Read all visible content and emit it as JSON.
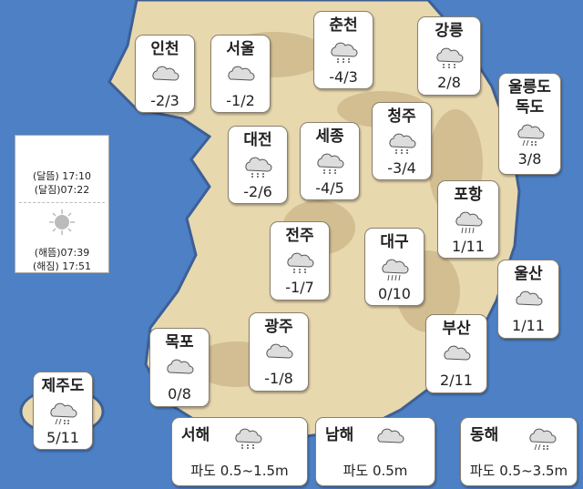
{
  "colors": {
    "sea": "#4d80c4",
    "land": "#e8d8ae",
    "land_dark": "#c9b486"
  },
  "astro": {
    "moon_icon": "moon-icon",
    "moonrise": "(달뜸) 17:10",
    "moonset": "(달짐)07:22",
    "sun_icon": "sun-icon",
    "sunrise": "(해뜸)07:39",
    "sunset": "(해짐) 17:51"
  },
  "cities": [
    {
      "name": "인천",
      "temp": "-2/3",
      "icon": "cloudy"
    },
    {
      "name": "서울",
      "temp": "-1/2",
      "icon": "cloudy"
    },
    {
      "name": "춘천",
      "temp": "-4/3",
      "icon": "snow"
    },
    {
      "name": "강릉",
      "temp": "2/8",
      "icon": "snow"
    },
    {
      "name": "울릉도",
      "name2": "독도",
      "temp": "3/8",
      "icon": "sleet"
    },
    {
      "name": "대전",
      "temp": "-2/6",
      "icon": "snow"
    },
    {
      "name": "세종",
      "temp": "-4/5",
      "icon": "snow"
    },
    {
      "name": "청주",
      "temp": "-3/4",
      "icon": "snow"
    },
    {
      "name": "포항",
      "temp": "1/11",
      "icon": "rain"
    },
    {
      "name": "전주",
      "temp": "-1/7",
      "icon": "snow"
    },
    {
      "name": "대구",
      "temp": "0/10",
      "icon": "rain"
    },
    {
      "name": "울산",
      "temp": "1/11",
      "icon": "cloudy"
    },
    {
      "name": "목포",
      "temp": "0/8",
      "icon": "cloudy"
    },
    {
      "name": "광주",
      "temp": "-1/8",
      "icon": "cloudy"
    },
    {
      "name": "부산",
      "temp": "2/11",
      "icon": "cloudy"
    },
    {
      "name": "제주도",
      "temp": "5/11",
      "icon": "sleet"
    }
  ],
  "seas": [
    {
      "name": "서해",
      "wave": "파도 0.5~1.5m",
      "icon": "snow"
    },
    {
      "name": "남해",
      "wave": "파도 0.5m",
      "icon": "cloudy"
    },
    {
      "name": "동해",
      "wave": "파도 0.5~3.5m",
      "icon": "sleet"
    }
  ]
}
